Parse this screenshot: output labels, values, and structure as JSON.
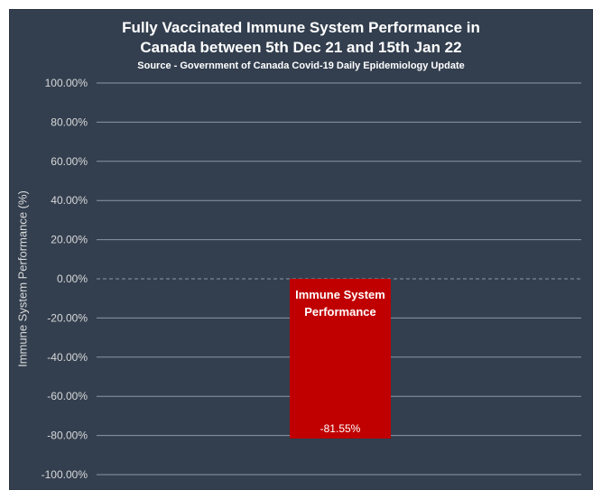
{
  "chart_data": {
    "type": "bar",
    "title_lines": [
      "Fully Vaccinated Immune System Performance in",
      "Canada between 5th Dec 21 and 15th Jan 22"
    ],
    "subtitle": "Source - Government of Canada Covid-19 Daily Epidemiology Update",
    "xlabel": "",
    "ylabel": "Immune System Performance (%)",
    "ylim": [
      -100,
      100
    ],
    "y_ticks": [
      "100.00%",
      "80.00%",
      "60.00%",
      "40.00%",
      "20.00%",
      "0.00%",
      "-20.00%",
      "-40.00%",
      "-60.00%",
      "-80.00%",
      "-100.00%"
    ],
    "grid": true,
    "zero_line_style": "dashed",
    "legend": "none",
    "series": [
      {
        "label_lines": [
          "Immune System",
          "Performance"
        ],
        "value": -81.55,
        "value_label": "-81.55%",
        "color": "#c00000"
      }
    ],
    "colors": {
      "background": "#333f4f",
      "gridline": "#8c96a3",
      "text": "#ffffff",
      "axis_text": "#d9d9d9"
    }
  }
}
